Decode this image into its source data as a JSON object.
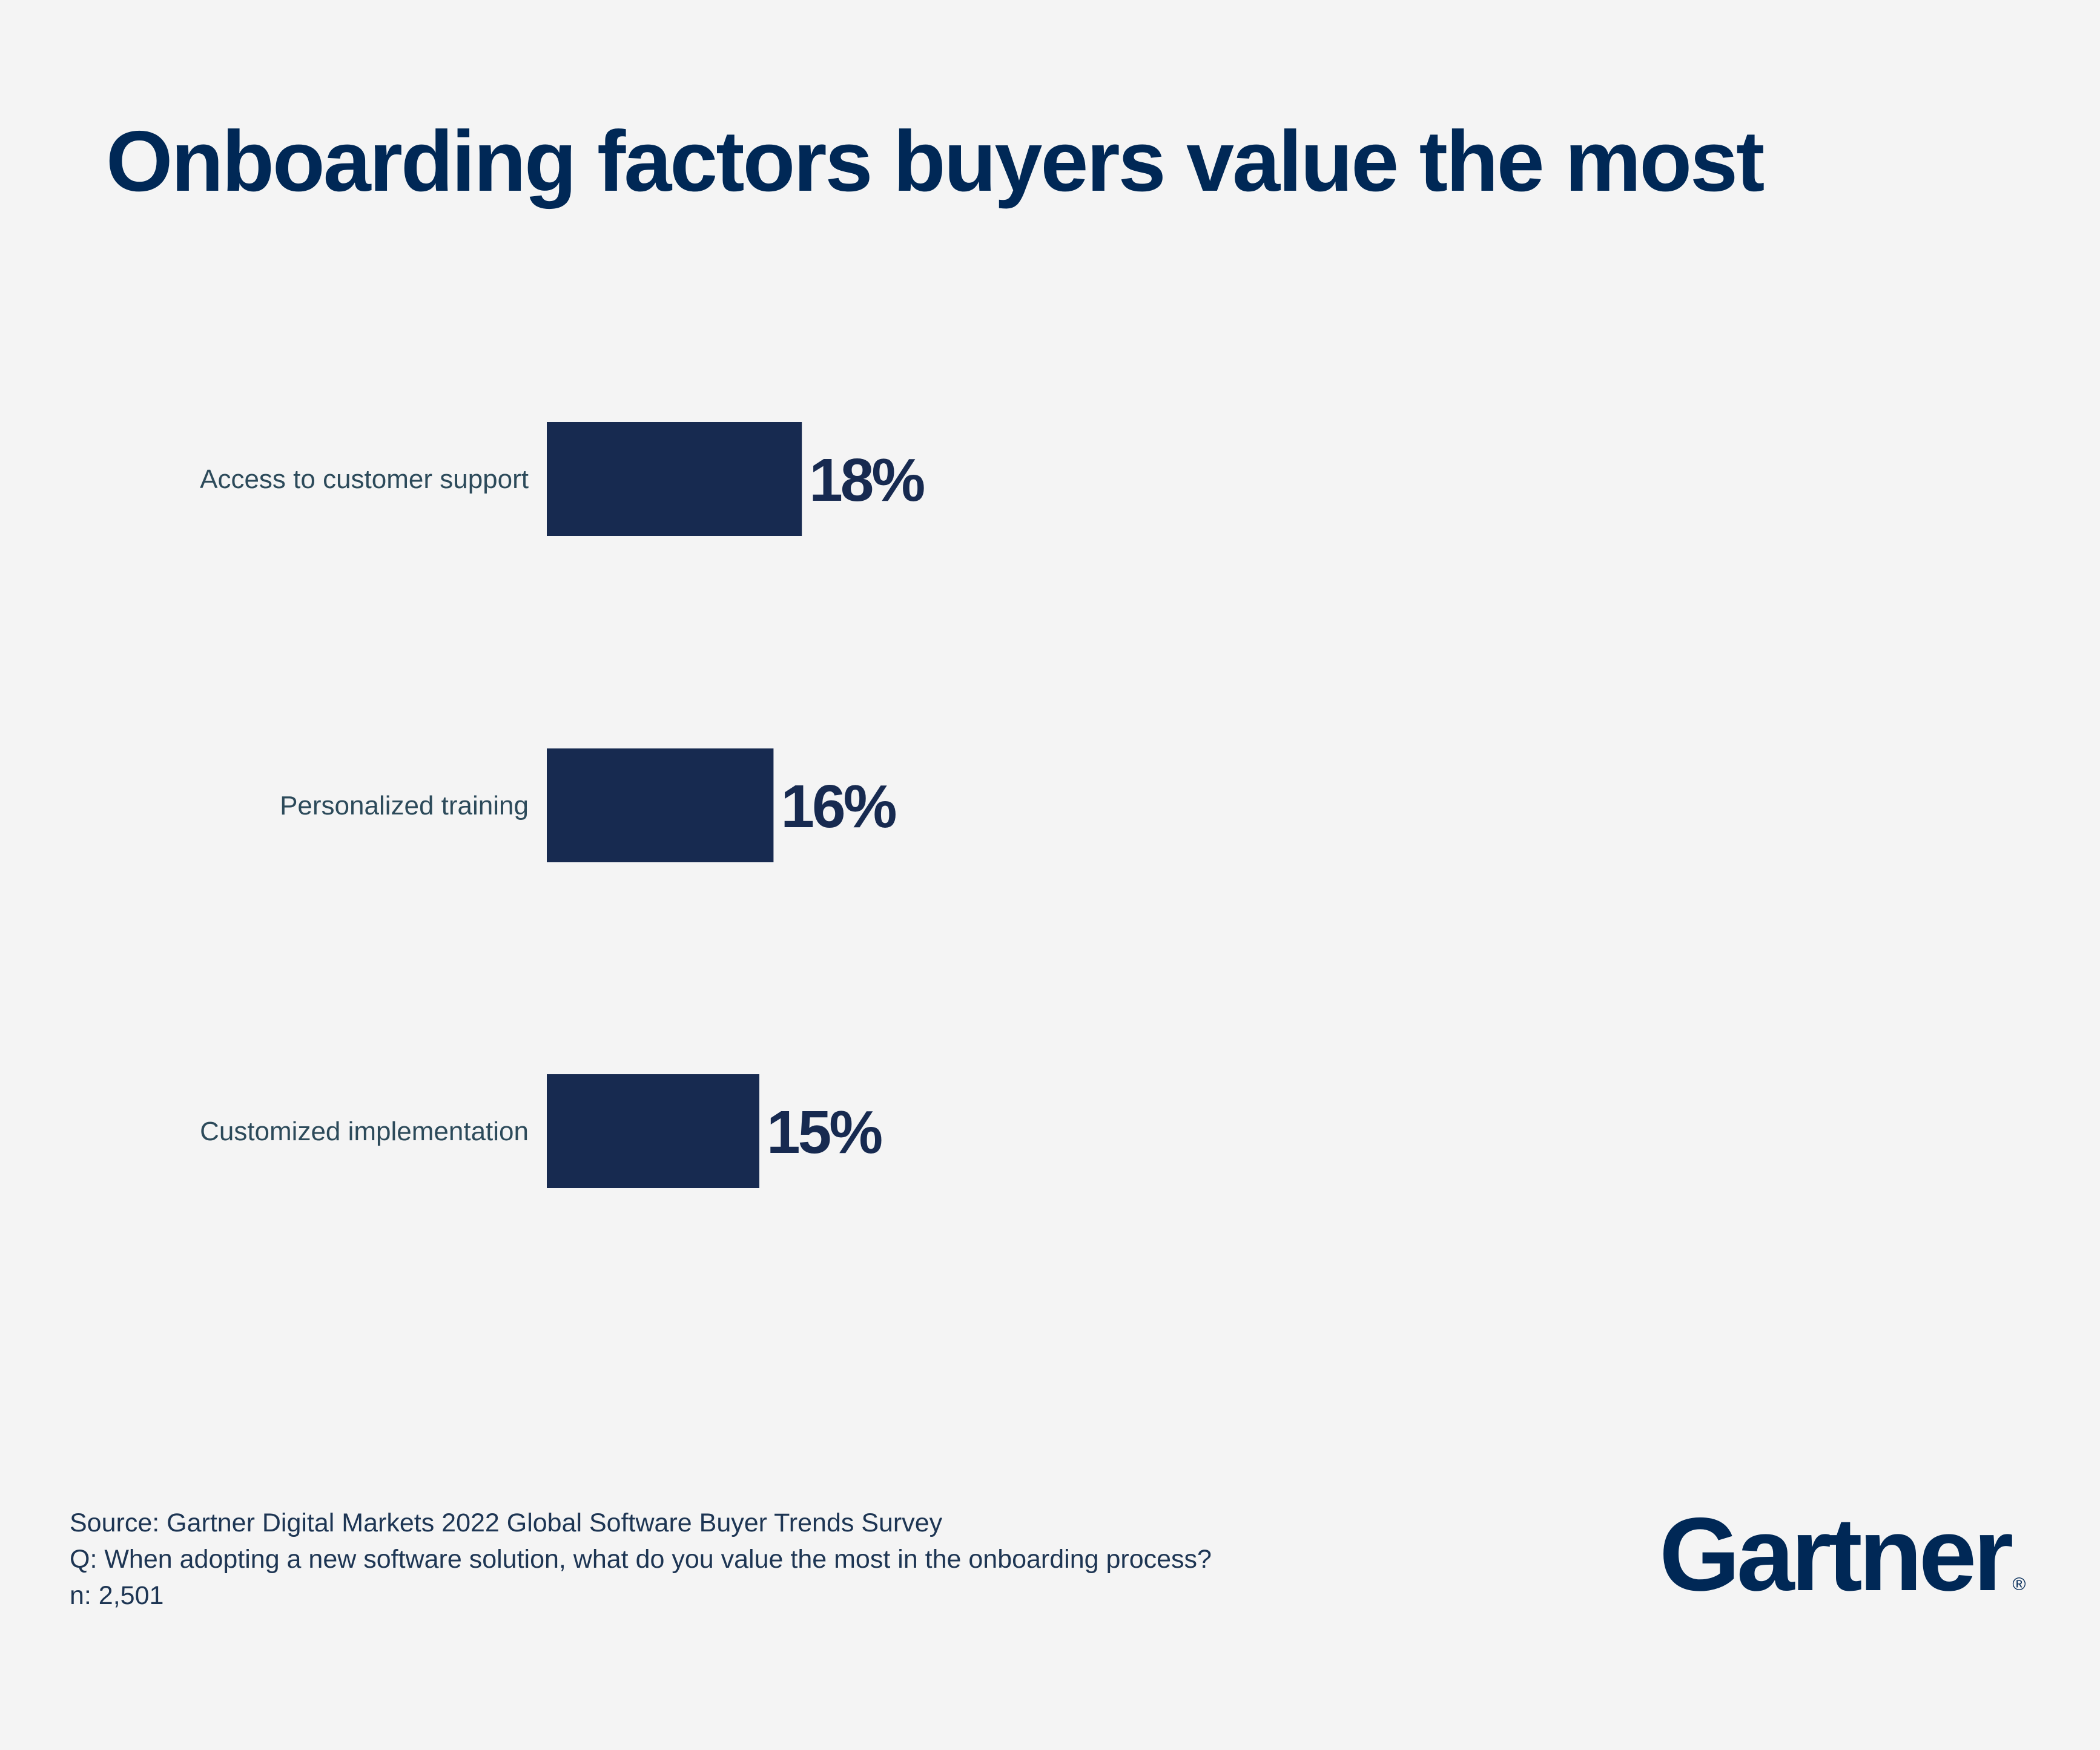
{
  "title": "Onboarding factors buyers value the most",
  "chart_data": {
    "type": "bar",
    "orientation": "horizontal",
    "title": "Onboarding factors buyers value the most",
    "categories": [
      "Access to customer support",
      "Personalized training",
      "Customized implementation"
    ],
    "values": [
      18,
      16,
      15
    ],
    "value_labels": [
      "18%",
      "16%",
      "15%"
    ],
    "unit": "%",
    "xlim": [
      0,
      100
    ],
    "grid": false,
    "bar_color": "#172a50"
  },
  "footer": {
    "source": "Source: Gartner Digital Markets 2022 Global Software Buyer Trends Survey",
    "question": "Q: When adopting a new software solution, what do you value the most in the onboarding process?",
    "sample": "n: 2,501"
  },
  "logo": {
    "text": "Gartner",
    "mark": "®"
  },
  "colors": {
    "title": "#002856",
    "label": "#2c4a5a",
    "background": "#f4f4f4"
  }
}
